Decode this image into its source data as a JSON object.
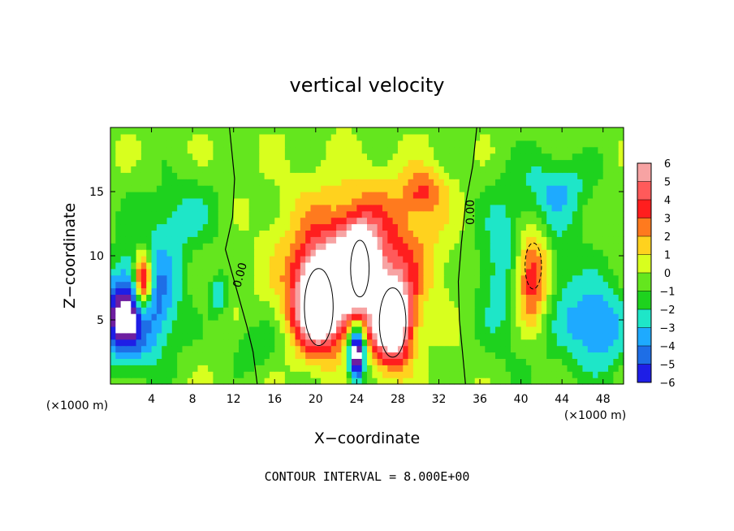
{
  "chart_data": {
    "type": "heatmap",
    "title": "vertical velocity",
    "xlabel": "X−coordinate",
    "ylabel": "Z−coordinate",
    "x_unit_left": "(×1000 m)",
    "x_unit_right": "(×1000 m)",
    "xlim": [
      0,
      50
    ],
    "ylim": [
      0,
      20
    ],
    "x_ticks": [
      4,
      8,
      12,
      16,
      20,
      24,
      28,
      32,
      36,
      40,
      44,
      48
    ],
    "y_ticks": [
      5,
      10,
      15
    ],
    "colorbar": {
      "levels": [
        6,
        5,
        4,
        3,
        2,
        1,
        0,
        -1,
        -2,
        -3,
        -4,
        -5,
        -6
      ],
      "labels": [
        "6",
        "5",
        "4",
        "3",
        "2",
        "1",
        "0",
        "−1",
        "−2",
        "−3",
        "−4",
        "−5",
        "−6"
      ],
      "colors": [
        "#f7a3a3",
        "#ff5a5a",
        "#ff1e1e",
        "#ff7a1e",
        "#ffd21e",
        "#d8ff1e",
        "#64e61e",
        "#1ed21e",
        "#1ee6c8",
        "#1eaaff",
        "#1e6ee6",
        "#1e1ee6",
        "#6e1ea0"
      ]
    },
    "contour_label": "0.00",
    "contour_interval_text": "CONTOUR INTERVAL = 8.000E+00",
    "features": [
      {
        "kind": "updraft",
        "x": 20.5,
        "z": 6.5,
        "sx": 2.6,
        "sz": 3.6,
        "w": 11
      },
      {
        "kind": "updraft",
        "x": 24.2,
        "z": 9.0,
        "sx": 1.7,
        "sz": 2.8,
        "w": 10
      },
      {
        "kind": "updraft",
        "x": 27.4,
        "z": 5.0,
        "sx": 2.0,
        "sz": 3.3,
        "w": 10
      },
      {
        "kind": "updraft",
        "x": 24.5,
        "z": 10.5,
        "sx": 6.5,
        "sz": 4.8,
        "w": 4.5
      },
      {
        "kind": "updraft",
        "x": 30.5,
        "z": 15.0,
        "sx": 2.0,
        "sz": 1.8,
        "w": 3
      },
      {
        "kind": "updraft",
        "x": 3.2,
        "z": 8.0,
        "sx": 0.9,
        "sz": 2.4,
        "w": 9
      },
      {
        "kind": "updraft",
        "x": 41.0,
        "z": 8.5,
        "sx": 2.0,
        "sz": 4.2,
        "w": 9
      },
      {
        "kind": "downdraft",
        "x": 24.0,
        "z": 2.5,
        "sx": 0.8,
        "sz": 2.2,
        "w": -9
      },
      {
        "kind": "downdraft",
        "x": 3.5,
        "z": 6.5,
        "sx": 3.2,
        "sz": 4.5,
        "w": -5
      },
      {
        "kind": "downdraft",
        "x": 1.0,
        "z": 5.0,
        "sx": 2.0,
        "sz": 3.0,
        "w": -5
      },
      {
        "kind": "downdraft",
        "x": 40.5,
        "z": 9.0,
        "sx": 4.0,
        "sz": 6.0,
        "w": -5
      },
      {
        "kind": "downdraft",
        "x": 47.5,
        "z": 4.5,
        "sx": 3.0,
        "sz": 3.5,
        "w": -4
      },
      {
        "kind": "downdraft",
        "x": 7.0,
        "z": 13.0,
        "sx": 4.0,
        "sz": 3.0,
        "w": -2
      },
      {
        "kind": "downdraft",
        "x": 10.5,
        "z": 7.0,
        "sx": 0.8,
        "sz": 1.5,
        "w": -3
      },
      {
        "kind": "downdraft",
        "x": 44.0,
        "z": 15.5,
        "sx": 3.5,
        "sz": 2.5,
        "w": -2
      },
      {
        "kind": "downdraft",
        "x": 14.0,
        "z": 3.0,
        "sx": 2.5,
        "sz": 2.0,
        "w": -1.5
      }
    ]
  }
}
